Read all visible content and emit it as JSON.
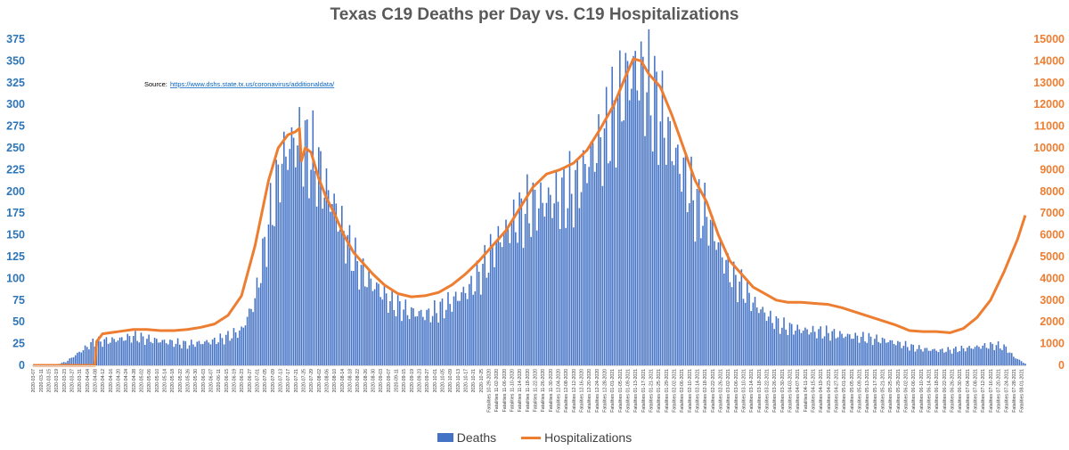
{
  "chart_data": {
    "type": "bar+line",
    "title": "Texas C19 Deaths per Day vs. C19 Hospitalizations",
    "annotation": {
      "label": "Source:",
      "url": "https://www.dshs.state.tx.us/coronavirus/additionaldata/"
    },
    "left_axis": {
      "ylim": [
        0,
        375
      ],
      "ticks": [
        0,
        25,
        50,
        75,
        100,
        125,
        150,
        175,
        200,
        225,
        250,
        275,
        300,
        325,
        350,
        375
      ],
      "color": "#2e75b6"
    },
    "right_axis": {
      "ylim": [
        0,
        15000
      ],
      "ticks": [
        0,
        1000,
        2000,
        3000,
        4000,
        5000,
        6000,
        7000,
        8000,
        9000,
        10000,
        11000,
        12000,
        13000,
        14000,
        15000
      ],
      "color": "#ed7d31"
    },
    "x_range": [
      "2020-03-07",
      "2021-08-03"
    ],
    "x_tick_labels": [
      "2020-03-07",
      "2020-03-11",
      "2020-03-15",
      "2020-03-19",
      "2020-03-23",
      "2020-03-27",
      "2020-03-31",
      "2020-04-04",
      "2020-04-08",
      "2020-04-12",
      "2020-04-16",
      "2020-04-20",
      "2020-04-24",
      "2020-04-28",
      "2020-05-02",
      "2020-05-06",
      "2020-05-10",
      "2020-05-14",
      "2020-05-18",
      "2020-05-22",
      "2020-05-26",
      "2020-05-30",
      "2020-06-03",
      "2020-06-07",
      "2020-06-11",
      "2020-06-15",
      "2020-06-19",
      "2020-06-23",
      "2020-06-27",
      "2020-07-01",
      "2020-07-05",
      "2020-07-09",
      "2020-07-13",
      "2020-07-17",
      "2020-07-21",
      "2020-07-25",
      "2020-07-29",
      "2020-08-02",
      "2020-08-06",
      "2020-08-10",
      "2020-08-14",
      "2020-08-18",
      "2020-08-22",
      "2020-08-26",
      "2020-08-30",
      "2020-09-03",
      "2020-09-07",
      "2020-09-11",
      "2020-09-15",
      "2020-09-19",
      "2020-09-23",
      "2020-09-27",
      "2020-10-01",
      "2020-10-05",
      "2020-10-09",
      "2020-10-13",
      "2020-10-17",
      "2020-10-21",
      "2020-10-25",
      "Fatalities 10-29-2020",
      "Fatalities 11-02-2020",
      "Fatalities 11-06-2020",
      "Fatalities 11-10-2020",
      "Fatalities 11-14-2020",
      "Fatalities 11-18-2020",
      "Fatalities 11-22-2020",
      "Fatalities 11-26-2020",
      "Fatalities 11-30-2020",
      "Fatalities 12-04-2020",
      "Fatalities 12-08-2020",
      "Fatalities 12-12-2020",
      "Fatalities 12-16-2020",
      "Fatalities 12-20-2020",
      "Fatalities 12-24-2020",
      "Fatalities 12-28-2020",
      "Fatalities 01-01-2021",
      "Fatalities 01-05-2021",
      "Fatalities 01-09-2021",
      "Fatalities 01-13-2021",
      "Fatalities 01-17-2021",
      "Fatalities 01-21-2021",
      "Fatalities 01-25-2021",
      "Fatalities 01-29-2021",
      "Fatalities 02-02-2021",
      "Fatalities 02-06-2021",
      "Fatalities 02-10-2021",
      "Fatalities 02-14-2021",
      "Fatalities 02-18-2021",
      "Fatalities 02-22-2021",
      "Fatalities 02-26-2021",
      "Fatalities 03-02-2021",
      "Fatalities 03-06-2021",
      "Fatalities 03-10-2021",
      "Fatalities 03-14-2021",
      "Fatalities 03-18-2021",
      "Fatalities 03-22-2021",
      "Fatalities 03-26-2021",
      "Fatalities 03-30-2021",
      "Fatalities 04-03-2021",
      "Fatalities 04-07-2021",
      "Fatalities 04-11-2021",
      "Fatalities 04-15-2021",
      "Fatalities 04-19-2021",
      "Fatalities 04-23-2021",
      "Fatalities 04-27-2021",
      "Fatalities 05-01-2021",
      "Fatalities 05-05-2021",
      "Fatalities 05-09-2021",
      "Fatalities 05-13-2021",
      "Fatalities 05-17-2021",
      "Fatalities 05-21-2021",
      "Fatalities 05-25-2021",
      "Fatalities 05-29-2021",
      "Fatalities 06-02-2021",
      "Fatalities 06-06-2021",
      "Fatalities 06-10-2021",
      "Fatalities 06-14-2021",
      "Fatalities 06-18-2021",
      "Fatalities 06-22-2021",
      "Fatalities 06-26-2021",
      "Fatalities 06-30-2021",
      "Fatalities 07-04-2021",
      "Fatalities 07-08-2021",
      "Fatalities 07-12-2021",
      "Fatalities 07-16-2021",
      "Fatalities 07-20-2021",
      "Fatalities 07-24-2021",
      "Fatalities 07-28-2021",
      "Fatalities 08-01-2021"
    ],
    "series": [
      {
        "name": "Deaths",
        "type": "bar",
        "axis": "left",
        "color": "#4472c4",
        "points": [
          [
            "2020-03-07",
            0
          ],
          [
            "2020-03-17",
            0
          ],
          [
            "2020-03-24",
            4
          ],
          [
            "2020-03-31",
            15
          ],
          [
            "2020-04-07",
            26
          ],
          [
            "2020-04-14",
            28
          ],
          [
            "2020-04-21",
            30
          ],
          [
            "2020-04-28",
            33
          ],
          [
            "2020-05-05",
            30
          ],
          [
            "2020-05-12",
            28
          ],
          [
            "2020-05-19",
            26
          ],
          [
            "2020-05-26",
            24
          ],
          [
            "2020-06-02",
            26
          ],
          [
            "2020-06-09",
            28
          ],
          [
            "2020-06-16",
            33
          ],
          [
            "2020-06-23",
            40
          ],
          [
            "2020-06-30",
            75
          ],
          [
            "2020-07-07",
            160
          ],
          [
            "2020-07-14",
            235
          ],
          [
            "2020-07-18",
            250
          ],
          [
            "2020-07-21",
            258
          ],
          [
            "2020-07-25",
            252
          ],
          [
            "2020-07-29",
            240
          ],
          [
            "2020-08-01",
            230
          ],
          [
            "2020-08-05",
            205
          ],
          [
            "2020-08-09",
            190
          ],
          [
            "2020-08-13",
            165
          ],
          [
            "2020-08-17",
            140
          ],
          [
            "2020-08-21",
            120
          ],
          [
            "2020-08-25",
            105
          ],
          [
            "2020-08-29",
            95
          ],
          [
            "2020-09-02",
            88
          ],
          [
            "2020-09-07",
            75
          ],
          [
            "2020-09-12",
            68
          ],
          [
            "2020-09-17",
            62
          ],
          [
            "2020-09-22",
            60
          ],
          [
            "2020-09-27",
            58
          ],
          [
            "2020-10-02",
            62
          ],
          [
            "2020-10-08",
            70
          ],
          [
            "2020-10-14",
            80
          ],
          [
            "2020-10-20",
            90
          ],
          [
            "2020-10-26",
            110
          ],
          [
            "2020-11-02",
            140
          ],
          [
            "2020-11-09",
            160
          ],
          [
            "2020-11-16",
            175
          ],
          [
            "2020-11-23",
            185
          ],
          [
            "2020-11-30",
            190
          ],
          [
            "2020-12-07",
            195
          ],
          [
            "2020-12-14",
            205
          ],
          [
            "2020-12-21",
            240
          ],
          [
            "2020-12-28",
            260
          ],
          [
            "2021-01-04",
            300
          ],
          [
            "2021-01-09",
            330
          ],
          [
            "2021-01-14",
            340
          ],
          [
            "2021-01-19",
            320
          ],
          [
            "2021-01-24",
            300
          ],
          [
            "2021-01-29",
            270
          ],
          [
            "2021-02-03",
            240
          ],
          [
            "2021-02-08",
            215
          ],
          [
            "2021-02-13",
            185
          ],
          [
            "2021-02-18",
            175
          ],
          [
            "2021-02-23",
            150
          ],
          [
            "2021-02-28",
            120
          ],
          [
            "2021-03-05",
            100
          ],
          [
            "2021-03-10",
            88
          ],
          [
            "2021-03-15",
            72
          ],
          [
            "2021-03-20",
            62
          ],
          [
            "2021-03-25",
            52
          ],
          [
            "2021-03-30",
            45
          ],
          [
            "2021-04-05",
            42
          ],
          [
            "2021-04-12",
            40
          ],
          [
            "2021-04-19",
            38
          ],
          [
            "2021-04-26",
            36
          ],
          [
            "2021-05-03",
            34
          ],
          [
            "2021-05-10",
            32
          ],
          [
            "2021-05-17",
            30
          ],
          [
            "2021-05-24",
            28
          ],
          [
            "2021-05-31",
            24
          ],
          [
            "2021-06-07",
            20
          ],
          [
            "2021-06-14",
            18
          ],
          [
            "2021-06-21",
            17
          ],
          [
            "2021-06-28",
            18
          ],
          [
            "2021-07-05",
            20
          ],
          [
            "2021-07-12",
            22
          ],
          [
            "2021-07-19",
            23
          ],
          [
            "2021-07-24",
            20
          ],
          [
            "2021-07-28",
            10
          ],
          [
            "2021-08-03",
            2
          ]
        ]
      },
      {
        "name": "Hospitalizations",
        "type": "line",
        "axis": "right",
        "color": "#ed7d31",
        "points": [
          [
            "2020-03-07",
            0
          ],
          [
            "2020-04-08",
            0
          ],
          [
            "2020-04-09",
            1100
          ],
          [
            "2020-04-12",
            1450
          ],
          [
            "2020-04-20",
            1550
          ],
          [
            "2020-04-28",
            1650
          ],
          [
            "2020-05-05",
            1650
          ],
          [
            "2020-05-12",
            1600
          ],
          [
            "2020-05-19",
            1600
          ],
          [
            "2020-05-26",
            1650
          ],
          [
            "2020-06-02",
            1750
          ],
          [
            "2020-06-09",
            1900
          ],
          [
            "2020-06-16",
            2300
          ],
          [
            "2020-06-23",
            3200
          ],
          [
            "2020-06-30",
            5500
          ],
          [
            "2020-07-07",
            8500
          ],
          [
            "2020-07-12",
            10000
          ],
          [
            "2020-07-17",
            10600
          ],
          [
            "2020-07-21",
            10750
          ],
          [
            "2020-07-23",
            10900
          ],
          [
            "2020-07-24",
            9400
          ],
          [
            "2020-07-26",
            10000
          ],
          [
            "2020-07-29",
            9800
          ],
          [
            "2020-08-02",
            8600
          ],
          [
            "2020-08-06",
            7700
          ],
          [
            "2020-08-10",
            7000
          ],
          [
            "2020-08-15",
            6000
          ],
          [
            "2020-08-20",
            5200
          ],
          [
            "2020-08-25",
            4700
          ],
          [
            "2020-08-30",
            4200
          ],
          [
            "2020-09-05",
            3700
          ],
          [
            "2020-09-12",
            3300
          ],
          [
            "2020-09-19",
            3150
          ],
          [
            "2020-09-26",
            3200
          ],
          [
            "2020-10-03",
            3350
          ],
          [
            "2020-10-10",
            3700
          ],
          [
            "2020-10-17",
            4200
          ],
          [
            "2020-10-24",
            4800
          ],
          [
            "2020-10-31",
            5500
          ],
          [
            "2020-11-07",
            6200
          ],
          [
            "2020-11-14",
            7200
          ],
          [
            "2020-11-21",
            8200
          ],
          [
            "2020-11-28",
            8800
          ],
          [
            "2020-12-05",
            9000
          ],
          [
            "2020-12-12",
            9300
          ],
          [
            "2020-12-19",
            9900
          ],
          [
            "2020-12-26",
            10900
          ],
          [
            "2021-01-02",
            12000
          ],
          [
            "2021-01-08",
            13300
          ],
          [
            "2021-01-12",
            14100
          ],
          [
            "2021-01-16",
            14000
          ],
          [
            "2021-01-20",
            13400
          ],
          [
            "2021-01-26",
            12800
          ],
          [
            "2021-02-01",
            11500
          ],
          [
            "2021-02-07",
            10000
          ],
          [
            "2021-02-13",
            8500
          ],
          [
            "2021-02-19",
            7500
          ],
          [
            "2021-02-25",
            6000
          ],
          [
            "2021-03-03",
            4800
          ],
          [
            "2021-03-09",
            4200
          ],
          [
            "2021-03-15",
            3600
          ],
          [
            "2021-03-21",
            3300
          ],
          [
            "2021-03-27",
            3000
          ],
          [
            "2021-04-02",
            2900
          ],
          [
            "2021-04-09",
            2900
          ],
          [
            "2021-04-16",
            2850
          ],
          [
            "2021-04-23",
            2800
          ],
          [
            "2021-04-30",
            2650
          ],
          [
            "2021-05-07",
            2450
          ],
          [
            "2021-05-14",
            2250
          ],
          [
            "2021-05-21",
            2050
          ],
          [
            "2021-05-28",
            1850
          ],
          [
            "2021-06-04",
            1600
          ],
          [
            "2021-06-11",
            1550
          ],
          [
            "2021-06-18",
            1550
          ],
          [
            "2021-06-25",
            1500
          ],
          [
            "2021-07-02",
            1700
          ],
          [
            "2021-07-09",
            2200
          ],
          [
            "2021-07-16",
            3000
          ],
          [
            "2021-07-23",
            4300
          ],
          [
            "2021-07-30",
            5800
          ],
          [
            "2021-08-03",
            6900
          ]
        ]
      }
    ]
  }
}
